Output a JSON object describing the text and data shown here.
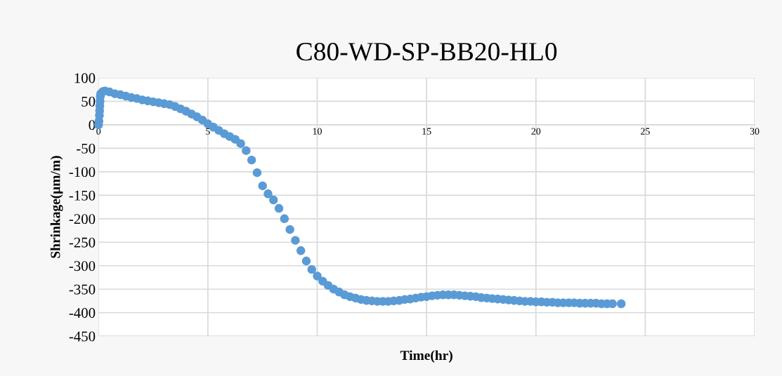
{
  "chart_data": {
    "type": "scatter",
    "title": "C80-WD-SP-BB20-HL0",
    "xlabel": "Time(hr)",
    "ylabel": "Shrinkage(μm/m)",
    "color": "#5b9bd5",
    "marker": "circle",
    "grid": true,
    "xlim": [
      0,
      30
    ],
    "xticks": [
      0,
      5,
      10,
      15,
      20,
      25,
      30
    ],
    "ylim": [
      -450,
      100
    ],
    "yticks": [
      -450,
      -400,
      -350,
      -300,
      -250,
      -200,
      -150,
      -100,
      -50,
      0,
      50,
      100
    ],
    "x": [
      0,
      0.02,
      0.04,
      0.05,
      0.06,
      0.07,
      0.08,
      0.1,
      0.2,
      0.3,
      0.5,
      0.75,
      1,
      1.25,
      1.5,
      1.75,
      2,
      2.25,
      2.5,
      2.75,
      3,
      3.25,
      3.5,
      3.75,
      4,
      4.25,
      4.5,
      4.75,
      5,
      5.25,
      5.5,
      5.75,
      6,
      6.25,
      6.5,
      6.75,
      7,
      7.25,
      7.5,
      7.75,
      8,
      8.25,
      8.5,
      8.75,
      9,
      9.25,
      9.5,
      9.75,
      10,
      10.25,
      10.5,
      10.75,
      11,
      11.25,
      11.5,
      11.75,
      12,
      12.25,
      12.5,
      12.75,
      13,
      13.25,
      13.5,
      13.75,
      14,
      14.25,
      14.5,
      14.75,
      15,
      15.25,
      15.5,
      15.75,
      16,
      16.25,
      16.5,
      16.75,
      17,
      17.25,
      17.5,
      17.75,
      18,
      18.25,
      18.5,
      18.75,
      19,
      19.25,
      19.5,
      19.75,
      20,
      20.25,
      20.5,
      20.75,
      21,
      21.25,
      21.5,
      21.75,
      22,
      22.25,
      22.5,
      22.75,
      23,
      23.25,
      23.5,
      23.9
    ],
    "values": [
      0,
      8,
      20,
      30,
      40,
      50,
      60,
      66,
      71,
      72,
      70,
      66,
      64,
      61,
      58,
      56,
      53,
      51,
      49,
      47,
      45,
      43,
      39,
      34,
      29,
      23,
      17,
      10,
      2,
      -5,
      -12,
      -19,
      -25,
      -31,
      -40,
      -55,
      -75,
      -102,
      -130,
      -147,
      -160,
      -178,
      -200,
      -223,
      -246,
      -268,
      -290,
      -308,
      -322,
      -333,
      -342,
      -350,
      -356,
      -362,
      -366,
      -369,
      -372,
      -374,
      -375,
      -376,
      -376,
      -376,
      -375,
      -374,
      -372,
      -371,
      -369,
      -367,
      -366,
      -364,
      -363,
      -362,
      -362,
      -362,
      -363,
      -364,
      -365,
      -366,
      -368,
      -369,
      -370,
      -371,
      -372,
      -373,
      -374,
      -375,
      -376,
      -376,
      -377,
      -377,
      -378,
      -378,
      -379,
      -379,
      -379,
      -379,
      -380,
      -380,
      -380,
      -380,
      -381,
      -381,
      -381,
      -381
    ]
  }
}
